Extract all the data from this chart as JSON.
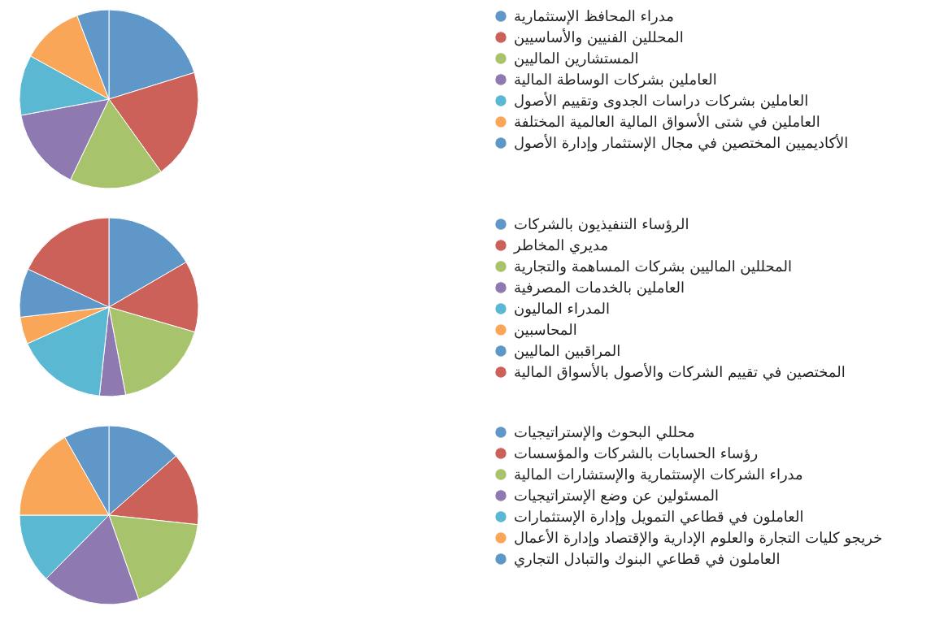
{
  "chart_data": [
    {
      "type": "pie",
      "legend": "right",
      "categories": [
        "مدراء المحافظ الإستثمارية",
        "المحللين الفنيين والأساسيين",
        "المستشارين الماليين",
        "العاملين بشركات الوساطة المالية",
        "العاملين بشركات دراسات الجدوى وتقييم الأصول",
        "العاملين في شتى الأسواق المالية العالمية المختلفة",
        "الأكاديميين المختصين في مجال الإستثمار وإدارة الأصول"
      ],
      "values": [
        20.2,
        19.9,
        17.0,
        15.0,
        10.9,
        11.2,
        5.8
      ],
      "colors": [
        "#5f97c8",
        "#cb6159",
        "#a7c36b",
        "#8f79b1",
        "#5bb8d3",
        "#f9a658",
        "#5f97c8"
      ]
    },
    {
      "type": "pie",
      "legend": "right",
      "categories": [
        "الرؤساء التنفيذيون بالشركات",
        "مديري المخاطر",
        "المحللين الماليين بشركات المساهمة والتجارية",
        "العاملين بالخدمات المصرفية",
        "المدراء الماليون",
        "المحاسبين",
        "المراقبين الماليين",
        "المختصين في تقييم الشركات والأصول بالأسواق المالية"
      ],
      "values": [
        16.6,
        12.9,
        17.5,
        4.7,
        16.6,
        4.9,
        8.8,
        18.0
      ],
      "colors": [
        "#5f97c8",
        "#cb6159",
        "#a7c36b",
        "#8f79b1",
        "#5bb8d3",
        "#f9a658",
        "#5f97c8",
        "#cb6159"
      ]
    },
    {
      "type": "pie",
      "legend": "right",
      "categories": [
        "محللي البحوث والإستراتيجيات",
        "رؤساء الحسابات بالشركات والمؤسسات",
        "مدراء الشركات الإستثمارية والإستشارات المالية",
        "المسئولين عن وضع الإستراتيجيات",
        "العاملون في قطاعي التمويل وإدارة الإستثمارات",
        "خريجو كليات التجارة والعلوم الإدارية والإقتصاد وإدارة الأعمال",
        "العاملون في قطاعي البنوك والتبادل التجاري"
      ],
      "values": [
        13.5,
        13.2,
        17.9,
        17.8,
        12.6,
        16.8,
        8.2
      ],
      "colors": [
        "#5f97c8",
        "#cb6159",
        "#a7c36b",
        "#8f79b1",
        "#5bb8d3",
        "#f9a658",
        "#5f97c8"
      ]
    }
  ]
}
